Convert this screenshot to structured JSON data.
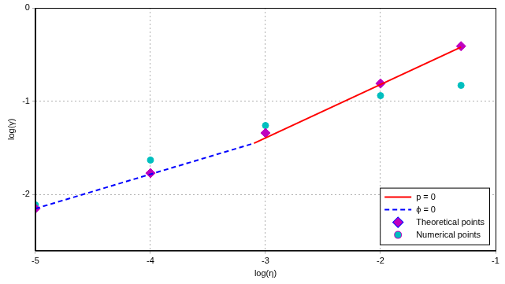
{
  "chart_data": {
    "type": "scatter",
    "x_label": "log(η)",
    "y_label": "log(γ)",
    "xlim": [
      -5,
      -1
    ],
    "xticks": [
      -5,
      -4,
      -3,
      -2,
      -1
    ],
    "ylim": [
      -2.6,
      0
    ],
    "yticks": [
      -2,
      -1,
      0
    ],
    "grid": true,
    "legend": "lower right",
    "series": [
      {
        "name": "p = 0",
        "type": "line",
        "color": "#ff0000",
        "line_style": "solid",
        "x": [
          -3.1,
          -1.3
        ],
        "values": [
          -1.45,
          -0.42
        ]
      },
      {
        "name": "ϕ = 0",
        "type": "line",
        "color": "#0000ff",
        "line_style": "dashed",
        "x": [
          -5,
          -3.1
        ],
        "values": [
          -2.15,
          -1.45
        ]
      },
      {
        "name": "Theoretical points",
        "type": "scatter",
        "color": "#bf00bf",
        "marker": "diamond",
        "x": [
          -5,
          -4,
          -3,
          -2,
          -1.3
        ],
        "values": [
          -2.15,
          -1.77,
          -1.34,
          -0.81,
          -0.41
        ]
      },
      {
        "name": "Numerical points",
        "type": "scatter",
        "color": "#00bfbf",
        "marker": "circle",
        "x": [
          -5,
          -4,
          -3,
          -2,
          -1.3
        ],
        "values": [
          -2.11,
          -1.63,
          -1.26,
          -0.94,
          -0.83
        ]
      }
    ]
  }
}
